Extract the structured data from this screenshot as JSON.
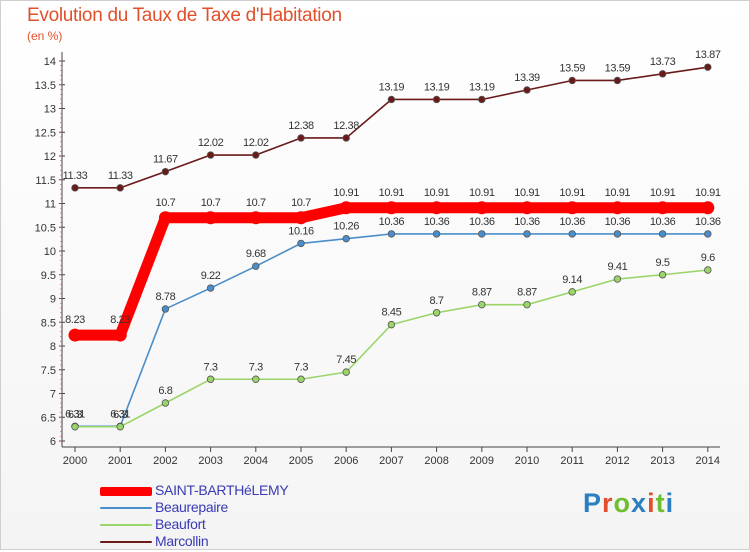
{
  "title": "Evolution du Taux de Taxe d'Habitation",
  "subtitle": "(en %)",
  "logo": {
    "text": "Proxiti",
    "colors": [
      "#2b7fc0",
      "#e0502a",
      "#6cbf2f",
      "#2b7fc0",
      "#e0502a",
      "#6cbf2f",
      "#2b7fc0"
    ]
  },
  "chart_data": {
    "type": "line",
    "x": [
      "2000",
      "2001",
      "2002",
      "2003",
      "2004",
      "2005",
      "2006",
      "2007",
      "2008",
      "2009",
      "2010",
      "2011",
      "2012",
      "2013",
      "2014"
    ],
    "ylim": [
      6,
      14
    ],
    "y_ticks": [
      "6",
      "6.5",
      "7",
      "7.5",
      "8",
      "8.5",
      "9",
      "9.5",
      "10",
      "10.5",
      "11",
      "11.5",
      "12",
      "12.5",
      "13",
      "13.5",
      "14"
    ],
    "grid": false,
    "legend_position": "bottom-left",
    "series": [
      {
        "name": "SAINT-BARTHéLEMY",
        "color": "#ff0000",
        "thick": true,
        "values": [
          8.23,
          8.23,
          10.7,
          10.7,
          10.7,
          10.7,
          10.91,
          10.91,
          10.91,
          10.91,
          10.91,
          10.91,
          10.91,
          10.91,
          10.91
        ],
        "labels": [
          "8.23",
          "8.23",
          "10.7",
          "10.7",
          "10.7",
          "10.7",
          "10.91",
          "10.91",
          "10.91",
          "10.91",
          "10.91",
          "10.91",
          "10.91",
          "10.91",
          "10.91"
        ]
      },
      {
        "name": "Beaurepaire",
        "color": "#4a8ec9",
        "thick": false,
        "values": [
          6.31,
          6.31,
          8.78,
          9.22,
          9.68,
          10.16,
          10.26,
          10.36,
          10.36,
          10.36,
          10.36,
          10.36,
          10.36,
          10.36,
          10.36
        ],
        "labels": [
          "6.31",
          "6.31",
          "8.78",
          "9.22",
          "9.68",
          "10.16",
          "10.26",
          "10.36",
          "10.36",
          "10.36",
          "10.36",
          "10.36",
          "10.36",
          "10.36",
          "10.36"
        ]
      },
      {
        "name": "Beaufort",
        "color": "#9ad56a",
        "thick": false,
        "values": [
          6.3,
          6.3,
          6.8,
          7.3,
          7.3,
          7.3,
          7.45,
          8.45,
          8.7,
          8.87,
          8.87,
          9.14,
          9.41,
          9.5,
          9.6
        ],
        "labels": [
          "6.3",
          "6.3",
          "6.8",
          "7.3",
          "7.3",
          "7.3",
          "7.45",
          "8.45",
          "8.7",
          "8.87",
          "8.87",
          "9.14",
          "9.41",
          "9.5",
          "9.6"
        ]
      },
      {
        "name": "Marcollin",
        "color": "#6b1a1a",
        "thick": false,
        "values": [
          11.33,
          11.33,
          11.67,
          12.02,
          12.02,
          12.38,
          12.38,
          13.19,
          13.19,
          13.19,
          13.39,
          13.59,
          13.59,
          13.73,
          13.87
        ],
        "labels": [
          "11.33",
          "11.33",
          "11.67",
          "12.02",
          "12.02",
          "12.38",
          "12.38",
          "13.19",
          "13.19",
          "13.19",
          "13.39",
          "13.59",
          "13.59",
          "13.73",
          "13.87"
        ]
      }
    ]
  }
}
